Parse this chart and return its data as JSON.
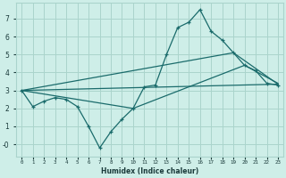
{
  "xlabel": "Humidex (Indice chaleur)",
  "bg_color": "#ceeee8",
  "grid_color": "#aad4cc",
  "line_color": "#1a6b6b",
  "xlim": [
    -0.5,
    23.5
  ],
  "ylim": [
    -0.7,
    7.9
  ],
  "xticks": [
    0,
    1,
    2,
    3,
    4,
    5,
    6,
    7,
    8,
    9,
    10,
    11,
    12,
    13,
    14,
    15,
    16,
    17,
    18,
    19,
    20,
    21,
    22,
    23
  ],
  "yticks": [
    0,
    1,
    2,
    3,
    4,
    5,
    6,
    7
  ],
  "line1_x": [
    0,
    1,
    2,
    3,
    4,
    5,
    6,
    7,
    8,
    9,
    10,
    11,
    12,
    13,
    14,
    15,
    16,
    17,
    18,
    19,
    20,
    21,
    22,
    23
  ],
  "line1_y": [
    3.0,
    2.1,
    2.4,
    2.6,
    2.5,
    2.1,
    1.0,
    -0.2,
    0.7,
    1.4,
    2.0,
    3.2,
    3.3,
    5.0,
    6.5,
    6.8,
    7.5,
    6.3,
    5.8,
    5.1,
    4.4,
    4.1,
    3.4,
    3.3
  ],
  "line2_x": [
    0,
    10,
    20,
    23
  ],
  "line2_y": [
    3.0,
    2.0,
    4.4,
    3.4
  ],
  "line3_x": [
    0,
    19,
    23
  ],
  "line3_y": [
    3.0,
    5.1,
    3.35
  ],
  "line4_x": [
    0,
    23
  ],
  "line4_y": [
    3.0,
    3.35
  ]
}
